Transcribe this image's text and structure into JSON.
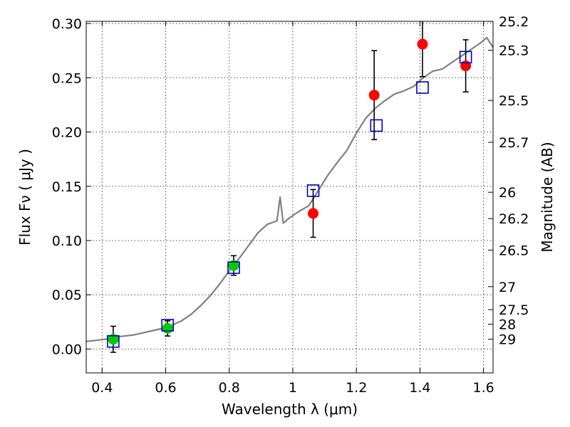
{
  "chart_data": {
    "type": "scatter",
    "title": "",
    "xlabel": "Wavelength  λ (μm)",
    "ylabel": "Flux  Fν  ( μJy )",
    "ylabel_right": "Magnitude (AB)",
    "xlim": [
      0.35,
      1.63
    ],
    "ylim": [
      -0.022,
      0.302
    ],
    "grid": true,
    "legend": "none",
    "x_ticks": [
      {
        "value": 0.4,
        "label": "0.4"
      },
      {
        "value": 0.6,
        "label": "0.6"
      },
      {
        "value": 0.8,
        "label": "0.8"
      },
      {
        "value": 1.0,
        "label": "1"
      },
      {
        "value": 1.2,
        "label": "1.2"
      },
      {
        "value": 1.4,
        "label": "1.4"
      },
      {
        "value": 1.6,
        "label": "1.6"
      }
    ],
    "y_ticks": [
      {
        "value": 0.0,
        "label": "0.00"
      },
      {
        "value": 0.05,
        "label": "0.05"
      },
      {
        "value": 0.1,
        "label": "0.10"
      },
      {
        "value": 0.15,
        "label": "0.15"
      },
      {
        "value": 0.2,
        "label": "0.20"
      },
      {
        "value": 0.25,
        "label": "0.25"
      },
      {
        "value": 0.3,
        "label": "0.30"
      }
    ],
    "right_ticks": [
      {
        "label": "25.2",
        "flux": 0.3019
      },
      {
        "label": "25.3",
        "flux": 0.2754
      },
      {
        "label": "25.5",
        "flux": 0.2291
      },
      {
        "label": "25.7",
        "flux": 0.1905
      },
      {
        "label": "26",
        "flux": 0.1445
      },
      {
        "label": "26.2",
        "flux": 0.1202
      },
      {
        "label": "26.5",
        "flux": 0.0912
      },
      {
        "label": "27",
        "flux": 0.0575
      },
      {
        "label": "27.5",
        "flux": 0.0363
      },
      {
        "label": "28",
        "flux": 0.0229
      },
      {
        "label": "29",
        "flux": 0.0091
      }
    ],
    "series": [
      {
        "kind": "spectrum",
        "color": "#808080",
        "x": [
          0.35,
          0.38,
          0.41,
          0.44,
          0.47,
          0.5,
          0.53,
          0.56,
          0.59,
          0.62,
          0.65,
          0.68,
          0.71,
          0.74,
          0.77,
          0.8,
          0.83,
          0.86,
          0.89,
          0.92,
          0.95,
          0.96,
          0.97,
          0.99,
          1.02,
          1.05,
          1.08,
          1.11,
          1.14,
          1.17,
          1.2,
          1.23,
          1.26,
          1.29,
          1.32,
          1.35,
          1.38,
          1.41,
          1.44,
          1.47,
          1.5,
          1.53,
          1.56,
          1.59,
          1.61,
          1.63
        ],
        "y": [
          0.007,
          0.008,
          0.009,
          0.011,
          0.012,
          0.013,
          0.015,
          0.017,
          0.019,
          0.022,
          0.026,
          0.032,
          0.04,
          0.049,
          0.06,
          0.072,
          0.083,
          0.095,
          0.107,
          0.115,
          0.118,
          0.14,
          0.116,
          0.121,
          0.127,
          0.132,
          0.146,
          0.16,
          0.172,
          0.183,
          0.199,
          0.213,
          0.222,
          0.229,
          0.235,
          0.238,
          0.242,
          0.25,
          0.256,
          0.258,
          0.264,
          0.27,
          0.276,
          0.282,
          0.287,
          0.278
        ]
      },
      {
        "kind": "markers",
        "marker": "circle",
        "color": "#00cc00",
        "x": [
          0.435,
          0.606,
          0.814
        ],
        "y": [
          0.009,
          0.019,
          0.077
        ],
        "err": [
          0.012,
          0.007,
          0.009
        ]
      },
      {
        "kind": "markers",
        "marker": "circle",
        "color": "#ff0000",
        "x": [
          1.064,
          1.256,
          1.408,
          1.544
        ],
        "y": [
          0.125,
          0.234,
          0.281,
          0.261
        ],
        "err": [
          0.022,
          0.041,
          0.03,
          0.024
        ]
      },
      {
        "kind": "markers",
        "marker": "square-open",
        "color": "#0000cc",
        "x": [
          0.435,
          0.606,
          0.814,
          1.064,
          1.263,
          1.408,
          1.544
        ],
        "y": [
          0.007,
          0.022,
          0.075,
          0.146,
          0.206,
          0.241,
          0.269
        ]
      }
    ]
  }
}
